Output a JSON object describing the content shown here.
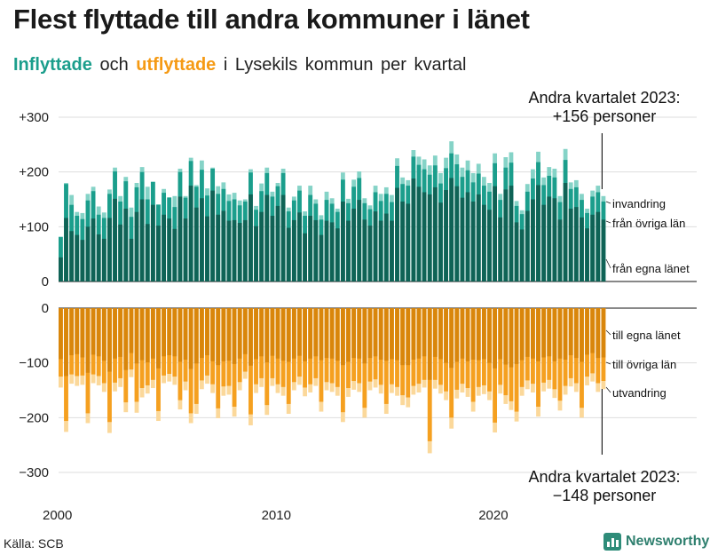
{
  "title": "Flest flyttade till andra kommuner i länet",
  "subtitle": {
    "inflyttade": "Inflyttade",
    "och": "och",
    "utflyttade": "utflyttade",
    "rest": "i Lysekils kommun per kvartal"
  },
  "source": "Källa: SCB",
  "brand": "Newsworthy",
  "colors": {
    "in_county": "#0f6356",
    "in_other": "#1b9e8c",
    "in_immigration": "#85d3c7",
    "out_county": "#d9860b",
    "out_other": "#f5a020",
    "out_emigration": "#fbd89a",
    "axis": "#111111",
    "grid": "#dddddd"
  },
  "chart_data": {
    "type": "bar",
    "stacked": true,
    "x_start": "2000 Q1",
    "x_ticks": [
      "2000",
      "2010",
      "2020"
    ],
    "y_ticks_top": [
      "+300",
      "+200",
      "+100",
      "0"
    ],
    "y_ticks_bottom": [
      "0",
      "−100",
      "−200",
      "−300"
    ],
    "ylim_top": [
      0,
      300
    ],
    "ylim_bottom": [
      -300,
      0
    ],
    "top_total": [
      82,
      180,
      158,
      127,
      125,
      160,
      173,
      137,
      126,
      168,
      208,
      156,
      191,
      135,
      180,
      209,
      173,
      182,
      141,
      169,
      154,
      156,
      206,
      156,
      226,
      176,
      221,
      170,
      208,
      174,
      181,
      159,
      162,
      148,
      150,
      205,
      138,
      179,
      208,
      164,
      180,
      206,
      135,
      155,
      175,
      128,
      175,
      150,
      121,
      164,
      152,
      133,
      199,
      151,
      186,
      201,
      152,
      139,
      175,
      160,
      172,
      158,
      225,
      190,
      185,
      240,
      228,
      223,
      212,
      230,
      198,
      226,
      256,
      232,
      208,
      221,
      198,
      215,
      191,
      180,
      234,
      160,
      227,
      236,
      147,
      130,
      178,
      205,
      237,
      190,
      209,
      206,
      156,
      242,
      181,
      185,
      160,
      133,
      166,
      175,
      156
    ],
    "top_county": [
      44,
      116,
      92,
      85,
      76,
      100,
      115,
      86,
      78,
      116,
      151,
      104,
      133,
      78,
      127,
      150,
      105,
      140,
      102,
      122,
      115,
      96,
      155,
      115,
      175,
      135,
      152,
      119,
      166,
      122,
      129,
      111,
      112,
      107,
      112,
      159,
      101,
      127,
      158,
      120,
      138,
      158,
      98,
      112,
      126,
      88,
      120,
      112,
      85,
      111,
      108,
      97,
      146,
      111,
      133,
      149,
      113,
      102,
      128,
      111,
      124,
      111,
      171,
      146,
      142,
      188,
      173,
      163,
      159,
      172,
      144,
      167,
      189,
      174,
      153,
      163,
      146,
      159,
      140,
      131,
      174,
      117,
      168,
      175,
      108,
      95,
      129,
      150,
      176,
      140,
      155,
      152,
      113,
      180,
      133,
      136,
      117,
      97,
      122,
      127,
      113
    ],
    "top_other": [
      37,
      62,
      48,
      35,
      38,
      48,
      50,
      36,
      38,
      44,
      50,
      42,
      50,
      40,
      45,
      50,
      45,
      42,
      38,
      40,
      38,
      40,
      45,
      38,
      45,
      38,
      52,
      38,
      40,
      38,
      40,
      36,
      38,
      32,
      34,
      40,
      30,
      38,
      40,
      35,
      36,
      40,
      30,
      36,
      40,
      32,
      38,
      30,
      28,
      38,
      34,
      30,
      40,
      32,
      40,
      40,
      30,
      30,
      35,
      36,
      36,
      34,
      40,
      32,
      33,
      40,
      40,
      42,
      36,
      40,
      35,
      40,
      45,
      40,
      38,
      40,
      35,
      38,
      35,
      33,
      42,
      32,
      40,
      42,
      30,
      28,
      35,
      38,
      42,
      36,
      38,
      38,
      32,
      42,
      36,
      36,
      32,
      28,
      33,
      36,
      33
    ],
    "bottom_total": [
      -145,
      -226,
      -138,
      -142,
      -140,
      -210,
      -137,
      -141,
      -153,
      -228,
      -152,
      -144,
      -190,
      -126,
      -191,
      -163,
      -156,
      -146,
      -206,
      -137,
      -134,
      -140,
      -185,
      -150,
      -210,
      -193,
      -148,
      -138,
      -155,
      -201,
      -160,
      -158,
      -198,
      -150,
      -129,
      -214,
      -155,
      -144,
      -195,
      -142,
      -155,
      -160,
      -193,
      -150,
      -140,
      -161,
      -154,
      -142,
      -189,
      -150,
      -153,
      -160,
      -208,
      -162,
      -149,
      -153,
      -200,
      -150,
      -145,
      -156,
      -193,
      -155,
      -160,
      -177,
      -181,
      -158,
      -154,
      -145,
      -265,
      -147,
      -156,
      -168,
      -220,
      -165,
      -154,
      -162,
      -189,
      -160,
      -157,
      -168,
      -227,
      -156,
      -175,
      -186,
      -207,
      -160,
      -148,
      -154,
      -198,
      -152,
      -147,
      -164,
      -187,
      -158,
      -143,
      -153,
      -200,
      -141,
      -134,
      -153,
      -148
    ],
    "bottom_county": [
      -93,
      -124,
      -86,
      -84,
      -90,
      -118,
      -85,
      -88,
      -96,
      -116,
      -92,
      -89,
      -113,
      -82,
      -101,
      -95,
      -99,
      -92,
      -110,
      -88,
      -86,
      -88,
      -98,
      -94,
      -111,
      -101,
      -91,
      -86,
      -97,
      -104,
      -97,
      -96,
      -102,
      -92,
      -84,
      -105,
      -93,
      -88,
      -99,
      -87,
      -92,
      -96,
      -98,
      -92,
      -87,
      -97,
      -92,
      -88,
      -95,
      -91,
      -92,
      -96,
      -104,
      -98,
      -91,
      -92,
      -101,
      -91,
      -88,
      -94,
      -96,
      -93,
      -95,
      -104,
      -104,
      -94,
      -92,
      -88,
      -131,
      -89,
      -93,
      -100,
      -109,
      -98,
      -92,
      -97,
      -94,
      -95,
      -93,
      -100,
      -110,
      -93,
      -103,
      -108,
      -102,
      -95,
      -89,
      -92,
      -97,
      -90,
      -88,
      -97,
      -92,
      -94,
      -86,
      -91,
      -98,
      -85,
      -82,
      -91,
      -90
    ],
    "bottom_other": [
      -32,
      -82,
      -35,
      -40,
      -33,
      -74,
      -36,
      -36,
      -41,
      -92,
      -44,
      -39,
      -59,
      -30,
      -70,
      -51,
      -42,
      -39,
      -78,
      -35,
      -34,
      -37,
      -70,
      -40,
      -81,
      -74,
      -41,
      -37,
      -42,
      -79,
      -46,
      -46,
      -78,
      -43,
      -32,
      -89,
      -46,
      -40,
      -78,
      -41,
      -47,
      -48,
      -77,
      -43,
      -38,
      -48,
      -47,
      -40,
      -76,
      -44,
      -45,
      -48,
      -86,
      -48,
      -42,
      -45,
      -81,
      -43,
      -42,
      -46,
      -79,
      -46,
      -49,
      -55,
      -59,
      -48,
      -46,
      -43,
      -112,
      -42,
      -47,
      -52,
      -91,
      -51,
      -46,
      -49,
      -77,
      -49,
      -48,
      -52,
      -99,
      -47,
      -56,
      -62,
      -87,
      -49,
      -43,
      -46,
      -83,
      -46,
      -43,
      -51,
      -77,
      -48,
      -42,
      -46,
      -84,
      -40,
      -37,
      -46,
      -43
    ],
    "labels_top": [
      "invandring",
      "från övriga län",
      "från egna länet"
    ],
    "labels_bottom": [
      "till egna länet",
      "till övriga län",
      "utvandring"
    ],
    "annotation_top": [
      "Andra kvartalet 2023:",
      "+156 personer"
    ],
    "annotation_bottom": [
      "Andra kvartalet 2023:",
      "−148 personer"
    ]
  }
}
